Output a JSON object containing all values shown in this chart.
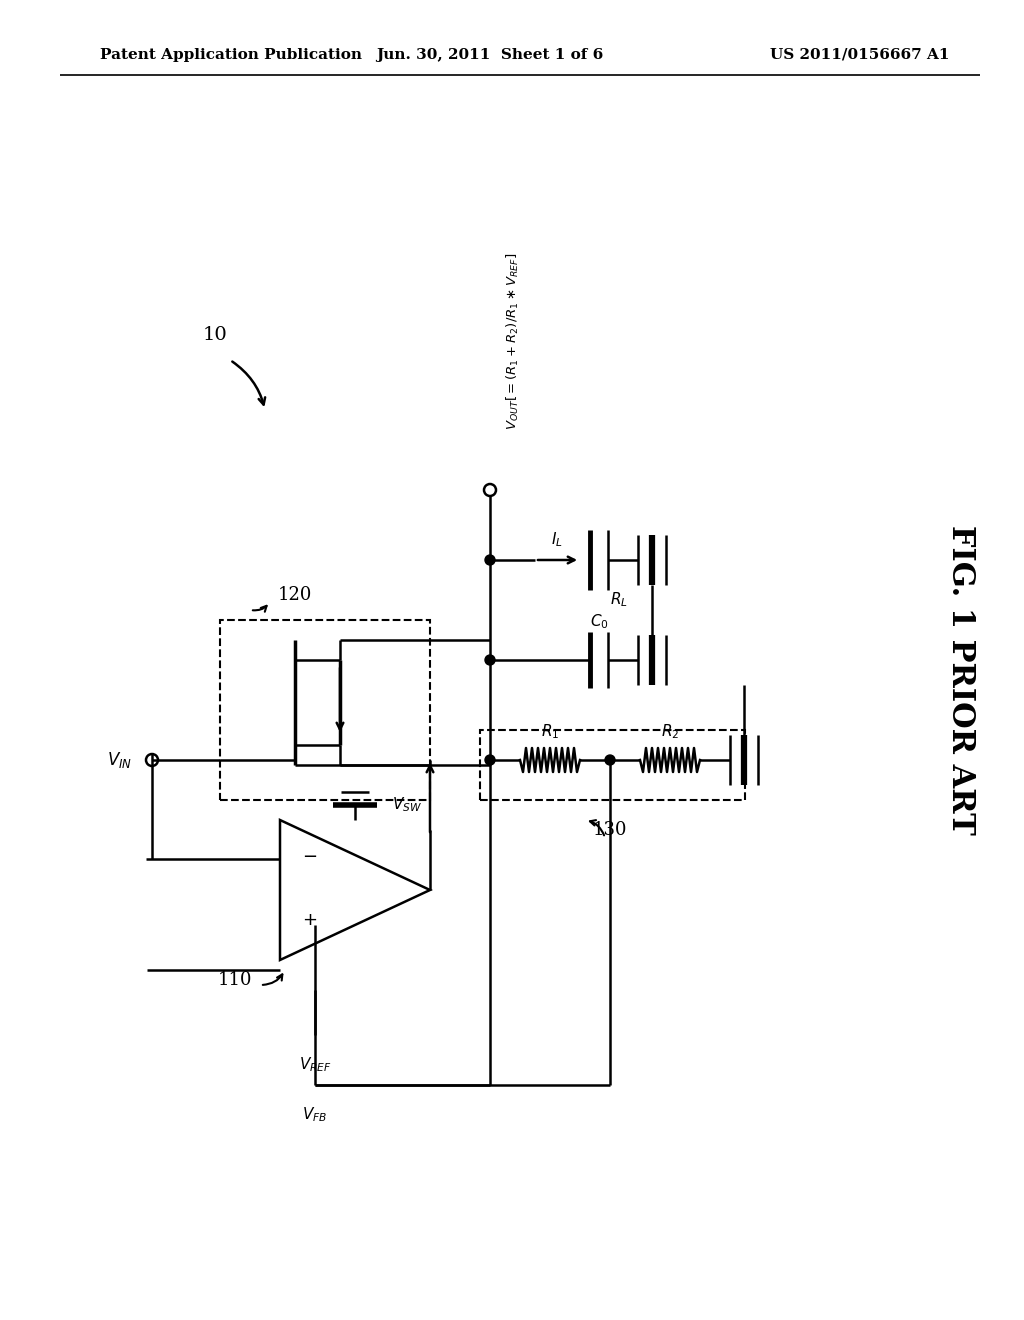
{
  "header_left": "Patent Application Publication",
  "header_mid": "Jun. 30, 2011  Sheet 1 of 6",
  "header_right": "US 2011/0156667 A1",
  "fig_label": "FIG. 1 PRIOR ART",
  "bg": "#ffffff"
}
